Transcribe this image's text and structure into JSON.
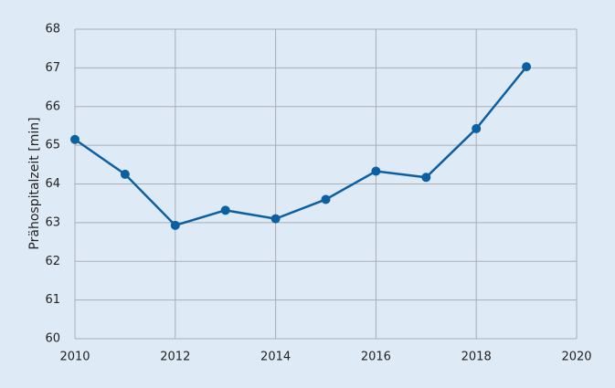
{
  "chart_data": {
    "type": "line",
    "y_label": "Prähospitalzeit [min]",
    "x": [
      2010,
      2011,
      2012,
      2013,
      2014,
      2015,
      2016,
      2017,
      2018,
      2019
    ],
    "series": [
      {
        "name": "Prähospitalzeit",
        "color": "#0c5fa0",
        "values": [
          65.15,
          64.25,
          62.93,
          63.32,
          63.1,
          63.6,
          64.33,
          64.17,
          65.43,
          67.03
        ]
      }
    ],
    "xlim": [
      2010,
      2020
    ],
    "xticks": [
      2010,
      2012,
      2014,
      2016,
      2018,
      2020
    ],
    "ylim": [
      60,
      68
    ],
    "yticks": [
      60,
      61,
      62,
      63,
      64,
      65,
      66,
      67,
      68
    ],
    "grid": true
  }
}
